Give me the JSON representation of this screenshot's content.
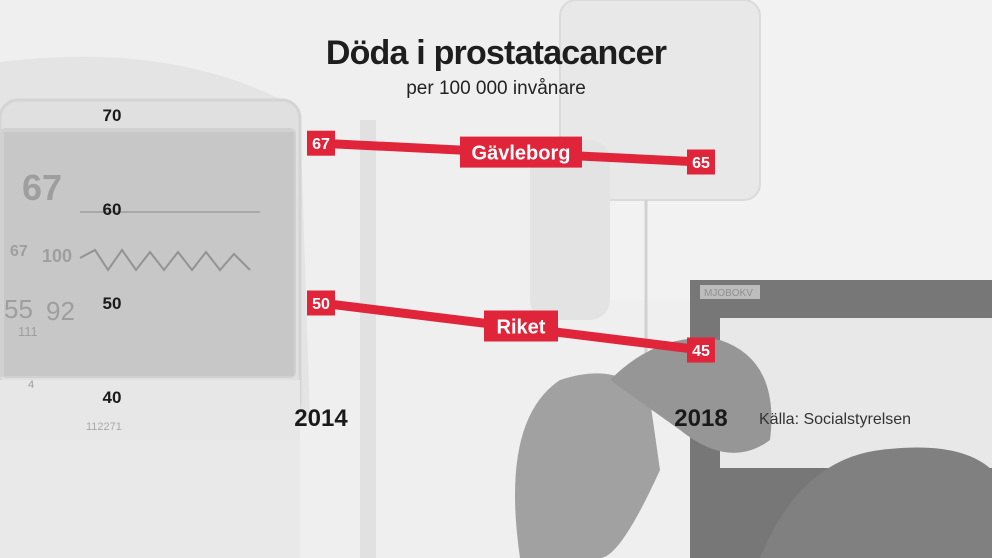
{
  "title": "Döda i prostatacancer",
  "subtitle": "per 100 000 invånare",
  "source": "Källa: Socialstyrelsen",
  "background_image": {
    "description": "grayscale hospital photo (patient monitor, IV drip)",
    "monitor_texts": [
      "67",
      "100",
      "67",
      "55",
      "92",
      "111",
      "4",
      "112271",
      "MJOBOKV"
    ]
  },
  "colors": {
    "series_line": "#e0243a",
    "label_text_on_red": "#ffffff",
    "axis_text": "#1a1a1a"
  },
  "chart_data": {
    "type": "line",
    "title": "Döda i prostatacancer",
    "subtitle": "per 100 000 invånare",
    "x": [
      "2014",
      "2018"
    ],
    "ylim": [
      40,
      70
    ],
    "yticks": [
      40,
      50,
      60,
      70
    ],
    "grid": false,
    "legend": "none",
    "series": [
      {
        "name": "Gävleborg",
        "values": [
          67,
          65
        ],
        "value_labels": [
          "67",
          "65"
        ]
      },
      {
        "name": "Riket",
        "values": [
          50,
          45
        ],
        "value_labels": [
          "50",
          "45"
        ]
      }
    ]
  }
}
